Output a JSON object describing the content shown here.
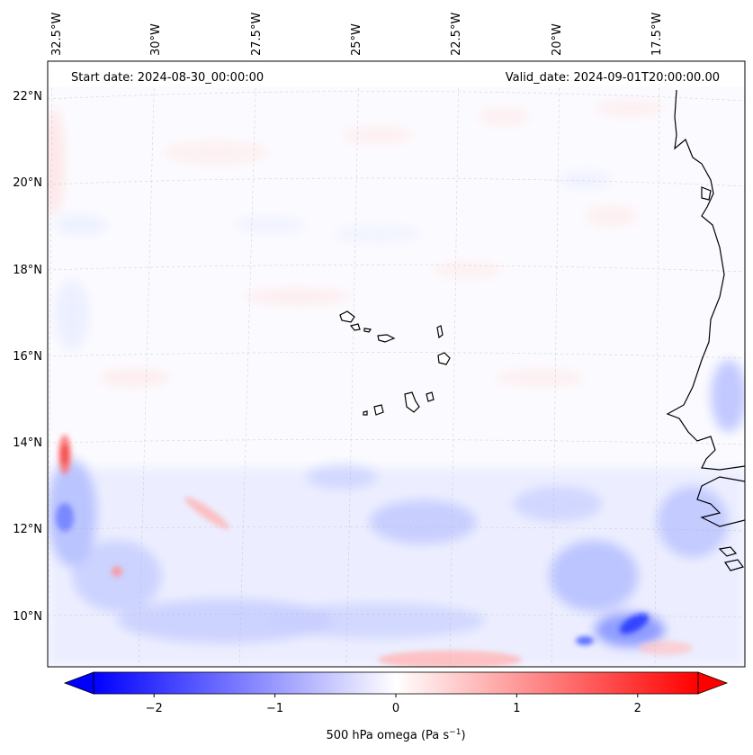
{
  "map": {
    "start_date": "Start date: 2024-08-30_00:00:00",
    "valid_date": "Valid_date: 2024-09-01T20:00:00.00",
    "lon_labels": [
      "32.5°W",
      "30°W",
      "27.5°W",
      "25°W",
      "22.5°W",
      "20°W",
      "17.5°W"
    ],
    "lat_labels": [
      "22°N",
      "20°N",
      "18°N",
      "16°N",
      "14°N",
      "12°N",
      "10°N"
    ]
  },
  "colorbar": {
    "ticks": [
      "−2",
      "−1",
      "0",
      "1",
      "2"
    ],
    "tick_values": [
      -2,
      -1,
      0,
      1,
      2
    ],
    "range": [
      -2.5,
      2.5
    ],
    "label_main": "500 hPa omega (Pa s",
    "label_sup": "−1",
    "label_end": ")",
    "colormap": "bwr",
    "colors": {
      "low": "#0000ff",
      "mid": "#ffffff",
      "high": "#ff0000"
    }
  }
}
